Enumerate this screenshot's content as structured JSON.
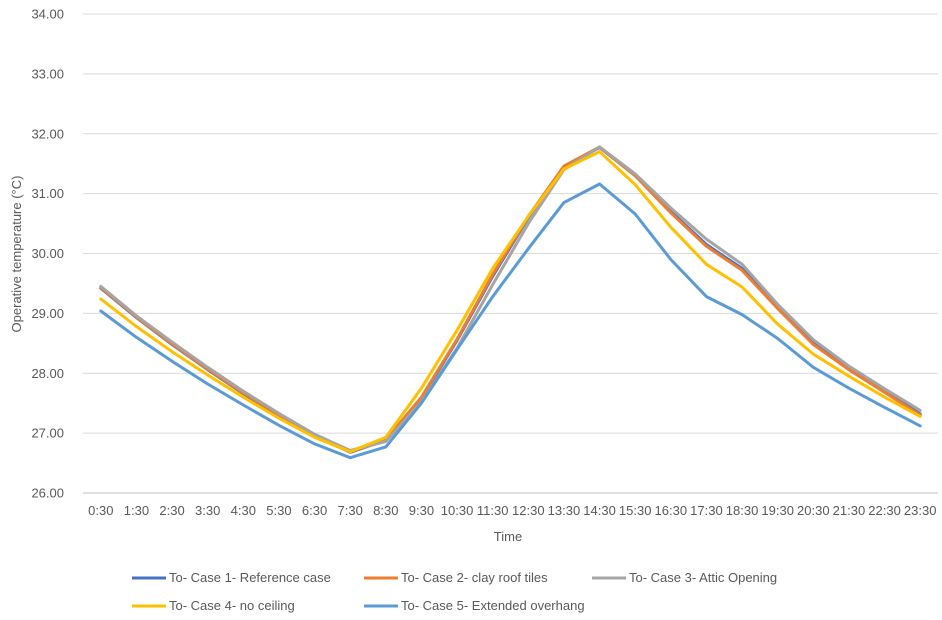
{
  "chart_data": {
    "type": "line",
    "xlabel": "Time",
    "ylabel": "Operative temperature (°C)",
    "ylim": [
      26,
      34
    ],
    "yticks": [
      "26.00",
      "27.00",
      "28.00",
      "29.00",
      "30.00",
      "31.00",
      "32.00",
      "33.00",
      "34.00"
    ],
    "grid": "horizontal",
    "legend_position": "bottom",
    "categories": [
      "0:30",
      "1:30",
      "2:30",
      "3:30",
      "4:30",
      "5:30",
      "6:30",
      "7:30",
      "8:30",
      "9:30",
      "10:30",
      "11:30",
      "12:30",
      "13:30",
      "14:30",
      "15:30",
      "16:30",
      "17:30",
      "18:30",
      "19:30",
      "20:30",
      "21:30",
      "22:30",
      "23:30"
    ],
    "series": [
      {
        "name": "To- Case 1- Reference case",
        "color": "#4472C4",
        "values": [
          29.42,
          28.93,
          28.48,
          28.06,
          27.66,
          27.3,
          26.95,
          26.68,
          26.88,
          27.58,
          28.55,
          29.62,
          30.6,
          31.45,
          31.77,
          31.3,
          30.7,
          30.15,
          29.75,
          29.1,
          28.5,
          28.08,
          27.7,
          27.32
        ]
      },
      {
        "name": "To- Case 2- clay roof tiles",
        "color": "#ED7D31",
        "values": [
          29.43,
          28.94,
          28.49,
          28.07,
          27.67,
          27.31,
          26.96,
          26.69,
          26.89,
          27.6,
          28.57,
          29.65,
          30.62,
          31.46,
          31.78,
          31.3,
          30.68,
          30.12,
          29.72,
          29.08,
          28.48,
          28.06,
          27.68,
          27.3
        ]
      },
      {
        "name": "To- Case 3- Attic Opening",
        "color": "#A5A5A5",
        "values": [
          29.45,
          28.96,
          28.52,
          28.1,
          27.7,
          27.33,
          26.98,
          26.71,
          26.86,
          27.52,
          28.42,
          29.48,
          30.5,
          31.4,
          31.78,
          31.33,
          30.76,
          30.24,
          29.82,
          29.15,
          28.56,
          28.12,
          27.74,
          27.38
        ]
      },
      {
        "name": "To- Case 4- no ceiling",
        "color": "#FFC000",
        "values": [
          29.24,
          28.78,
          28.36,
          27.97,
          27.6,
          27.25,
          26.93,
          26.69,
          26.93,
          27.75,
          28.72,
          29.75,
          30.62,
          31.41,
          31.7,
          31.15,
          30.44,
          29.82,
          29.44,
          28.82,
          28.32,
          27.95,
          27.6,
          27.28
        ]
      },
      {
        "name": "To- Case 5- Extended overhang",
        "color": "#5B9BD5",
        "values": [
          29.04,
          28.6,
          28.2,
          27.82,
          27.47,
          27.13,
          26.82,
          26.59,
          26.77,
          27.5,
          28.4,
          29.28,
          30.08,
          30.85,
          31.16,
          30.66,
          29.9,
          29.28,
          28.98,
          28.58,
          28.1,
          27.75,
          27.43,
          27.12
        ]
      }
    ]
  }
}
